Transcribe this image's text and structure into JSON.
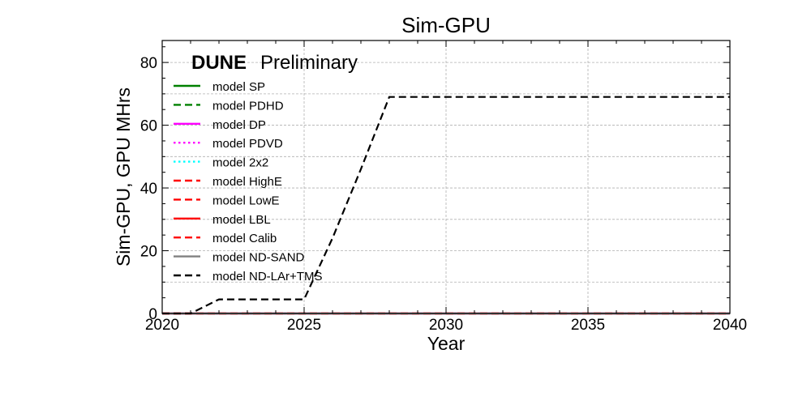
{
  "chart_data": {
    "type": "line",
    "title": "Sim-GPU",
    "xlabel": "Year",
    "ylabel": "Sim-GPU, GPU MHrs",
    "xlim": [
      2020,
      2040
    ],
    "ylim": [
      0,
      87
    ],
    "xticks": [
      2020,
      2025,
      2030,
      2035,
      2040
    ],
    "yticks": [
      0,
      20,
      40,
      60,
      80
    ],
    "grid": true,
    "legend_placement": "upper-left",
    "badge": {
      "bold": "DUNE",
      "light": "Preliminary"
    },
    "series": [
      {
        "name": "model SP",
        "color": "#008000",
        "dash": "solid",
        "x": [
          2020,
          2040
        ],
        "y": [
          0,
          0
        ]
      },
      {
        "name": "model PDHD",
        "color": "#008000",
        "dash": "dashed",
        "x": [
          2020,
          2040
        ],
        "y": [
          0,
          0
        ]
      },
      {
        "name": "model DP",
        "color": "#ff00ff",
        "dash": "solid",
        "x": [
          2020,
          2040
        ],
        "y": [
          0,
          0
        ]
      },
      {
        "name": "model PDVD",
        "color": "#ff00ff",
        "dash": "dotted",
        "x": [
          2020,
          2040
        ],
        "y": [
          0,
          0
        ]
      },
      {
        "name": "model 2x2",
        "color": "#00ffff",
        "dash": "dotted",
        "x": [
          2020,
          2040
        ],
        "y": [
          0,
          0
        ]
      },
      {
        "name": "model HighE",
        "color": "#ff0000",
        "dash": "dashed",
        "x": [
          2020,
          2040
        ],
        "y": [
          0,
          0
        ]
      },
      {
        "name": "model LowE",
        "color": "#ff0000",
        "dash": "dashed",
        "x": [
          2020,
          2040
        ],
        "y": [
          0,
          0
        ]
      },
      {
        "name": "model LBL",
        "color": "#ff0000",
        "dash": "solid",
        "x": [
          2020,
          2040
        ],
        "y": [
          0,
          0
        ]
      },
      {
        "name": "model Calib",
        "color": "#ff0000",
        "dash": "dashed",
        "x": [
          2020,
          2040
        ],
        "y": [
          0,
          0
        ]
      },
      {
        "name": "model ND-SAND",
        "color": "#808080",
        "dash": "solid",
        "x": [
          2020,
          2040
        ],
        "y": [
          0,
          0
        ]
      },
      {
        "name": "model ND-LAr+TMS",
        "color": "#000000",
        "dash": "dashed",
        "x": [
          2020,
          2021,
          2022,
          2023,
          2024,
          2025,
          2026,
          2027,
          2028,
          2029,
          2030,
          2031,
          2032,
          2033,
          2034,
          2035,
          2036,
          2037,
          2038,
          2039,
          2040
        ],
        "y": [
          0,
          0,
          4.5,
          4.5,
          4.5,
          4.5,
          24,
          46,
          69,
          69,
          69,
          69,
          69,
          69,
          69,
          69,
          69,
          69,
          69,
          69,
          69
        ]
      }
    ]
  }
}
